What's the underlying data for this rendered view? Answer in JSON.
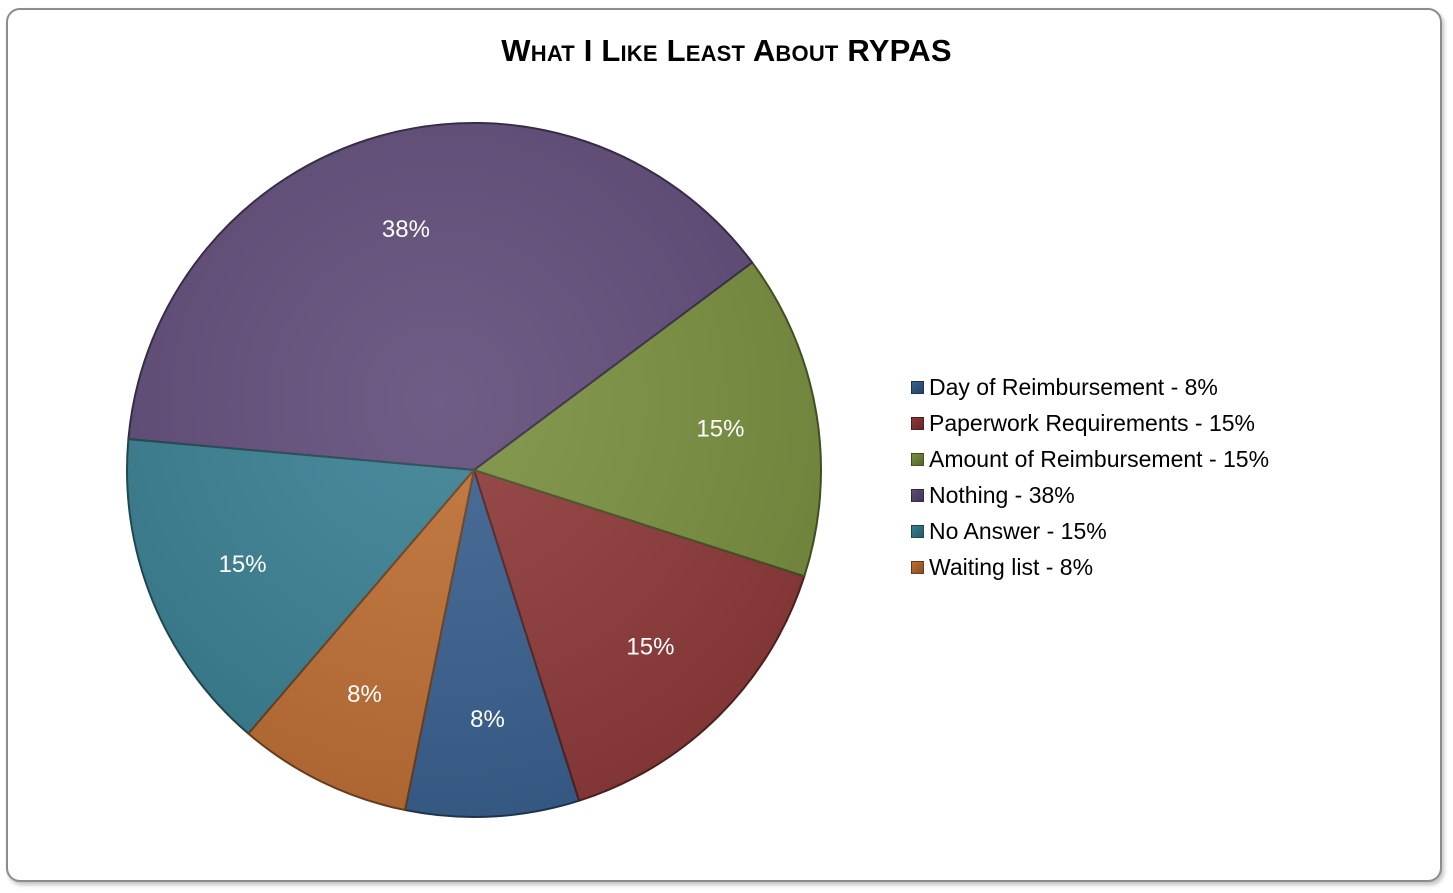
{
  "chart_data": {
    "type": "pie",
    "title": "What I Like Least About RYPAS",
    "categories": [
      "Day of Reimbursement",
      "Paperwork Requirements",
      "Amount of Reimbursement",
      "Nothing",
      "No Answer",
      "Waiting list"
    ],
    "values": [
      8,
      15,
      15,
      38,
      15,
      8
    ],
    "value_labels": [
      "8%",
      "15%",
      "15%",
      "38%",
      "15%",
      "8%"
    ],
    "legend_labels": [
      "Day of Reimbursement - 8%",
      "Paperwork Requirements - 15%",
      "Amount of Reimbursement - 15%",
      "Nothing - 38%",
      "No Answer - 15%",
      "Waiting list - 8%"
    ],
    "colors": [
      "#375F8E",
      "#8E3838",
      "#798F3E",
      "#5F4B79",
      "#377F92",
      "#BE6E32"
    ],
    "label_color": "#ffffff",
    "legend_position": "right",
    "direction": "counter-clockwise from bottom"
  }
}
